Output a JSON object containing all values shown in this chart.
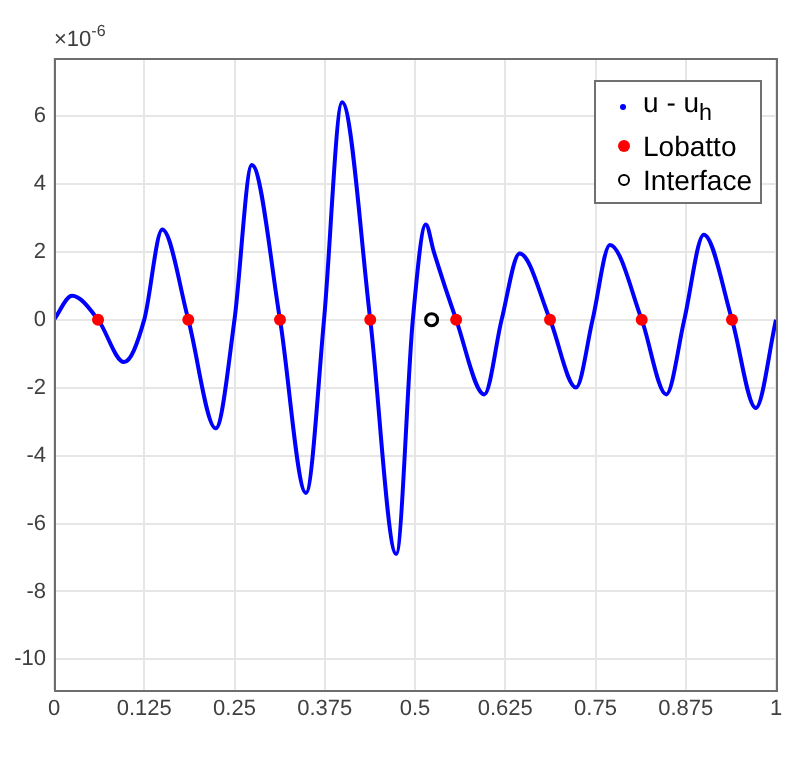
{
  "chart_data": {
    "type": "line",
    "annotations": [
      "×10$^{-6}$"
    ],
    "xlim": [
      0,
      1
    ],
    "xticks": [
      0,
      0.125,
      0.25,
      0.375,
      0.5,
      0.625,
      0.75,
      0.875,
      1
    ],
    "ylim": [
      -10.9,
      7.7
    ],
    "yticks": [
      -10,
      -8,
      -6,
      -4,
      -2,
      0,
      2,
      4,
      6
    ],
    "grid": true,
    "legend": "top right",
    "series": [
      {
        "name": "u - u$_{h}$",
        "type": "line",
        "color": "#0000ff",
        "marker": "none",
        "x": [
          0,
          0.025,
          0.061,
          0.097,
          0.125,
          0.15,
          0.186,
          0.224,
          0.25,
          0.274,
          0.313,
          0.349,
          0.374,
          0.399,
          0.438,
          0.474,
          0.497,
          0.515,
          0.526,
          0.557,
          0.596,
          0.62,
          0.645,
          0.687,
          0.723,
          0.746,
          0.77,
          0.814,
          0.848,
          0.873,
          0.9,
          0.939,
          0.972,
          1
        ],
        "values": [
          0,
          0.7,
          0,
          -1.25,
          0,
          2.65,
          0,
          -3.2,
          0,
          4.55,
          0,
          -5.1,
          0,
          6.4,
          0,
          -6.9,
          0,
          2.8,
          2.0,
          0,
          -2.2,
          0,
          1.95,
          0,
          -2.0,
          0,
          2.2,
          0,
          -2.2,
          0,
          2.5,
          0,
          -2.6,
          0
        ]
      },
      {
        "name": "Lobatto",
        "type": "scatter",
        "color": "#ff0000",
        "marker": "circle",
        "x": [
          0.061,
          0.186,
          0.313,
          0.438,
          0.557,
          0.687,
          0.814,
          0.939
        ],
        "values": [
          0,
          0,
          0,
          0,
          0,
          0,
          0,
          0
        ]
      },
      {
        "name": "Interface",
        "type": "scatter",
        "color": "#000000",
        "marker": "circle",
        "x": [
          0.523
        ],
        "values": [
          0
        ]
      }
    ]
  }
}
